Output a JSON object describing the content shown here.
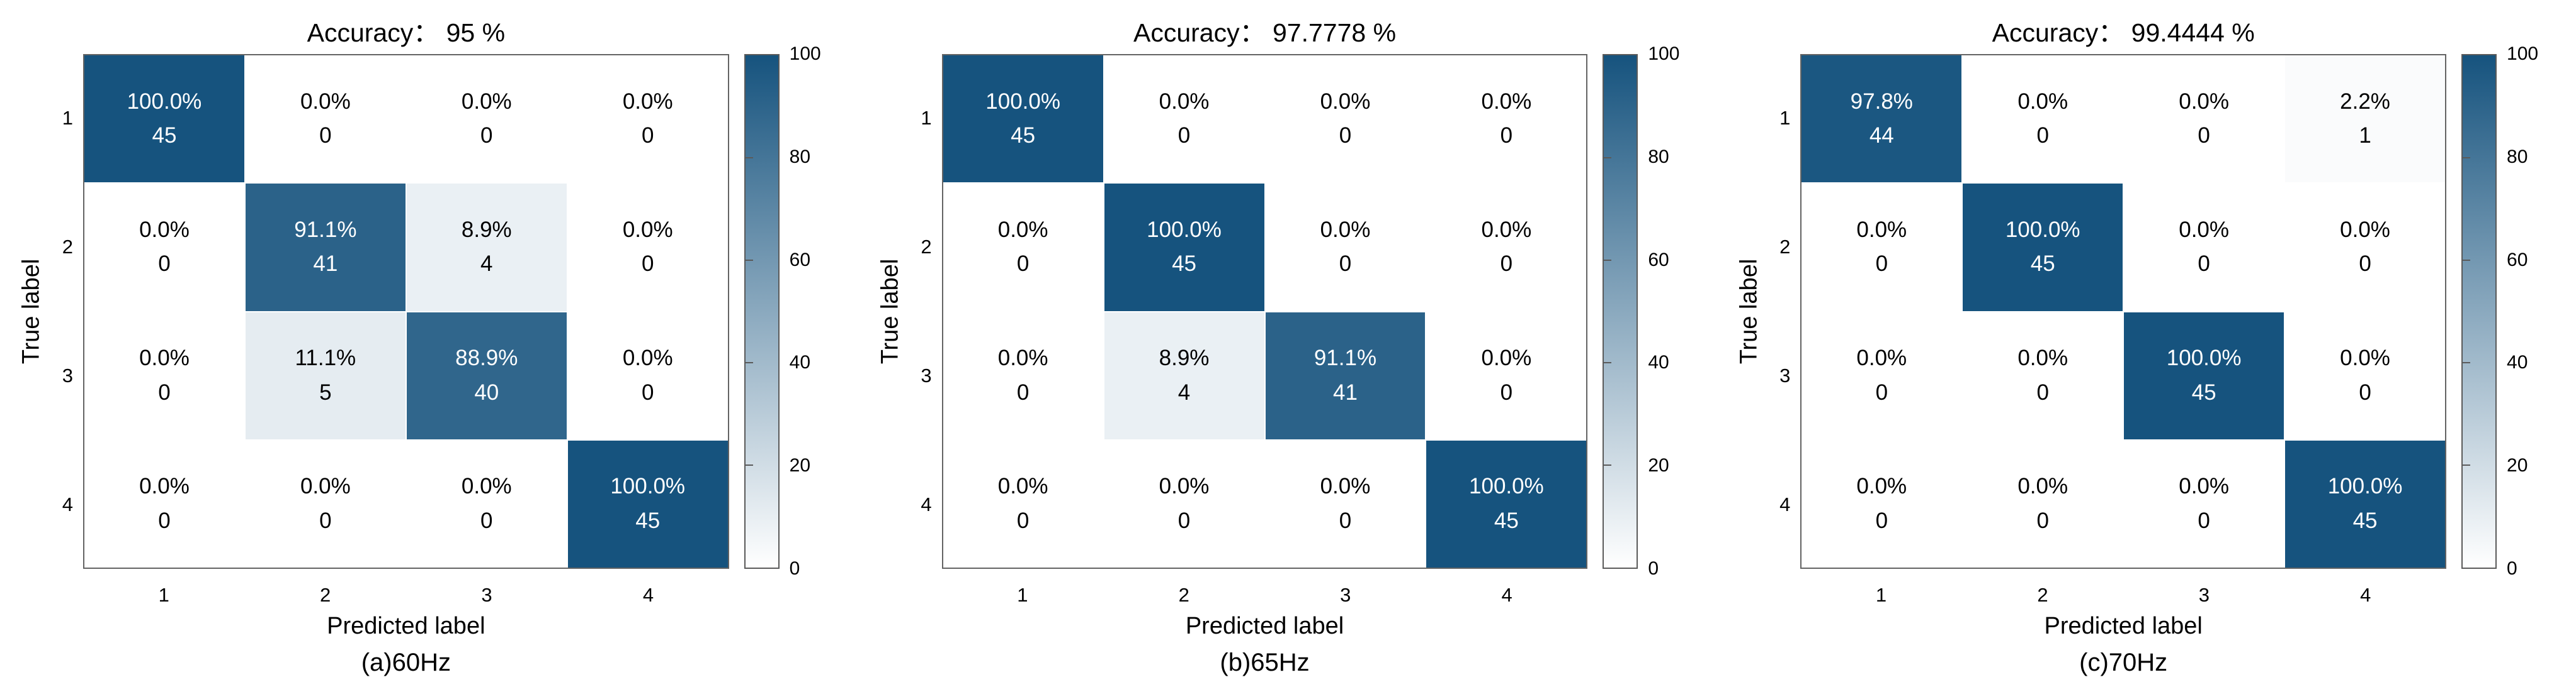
{
  "page": {
    "background": "#ffffff"
  },
  "style": {
    "colormap_low": "#ffffff",
    "colormap_high": "#16537e",
    "frame_color": "#636363",
    "text_color": "#000000",
    "cell_text_on_dark": "#ffffff"
  },
  "colorbar": {
    "min": 0,
    "max": 100,
    "tick_values": [
      100,
      80,
      60,
      40,
      20,
      0
    ],
    "tick_labels": [
      "100",
      "80",
      "60",
      "40",
      "20",
      "0"
    ]
  },
  "chart_data": [
    {
      "type": "heatmap",
      "title": "Accuracy： 95 %",
      "caption": "(a)60Hz",
      "xlabel": "Predicted label",
      "ylabel": "True label",
      "x_ticks": [
        "1",
        "2",
        "3",
        "4"
      ],
      "y_ticks": [
        "1",
        "2",
        "3",
        "4"
      ],
      "zlim": [
        0,
        100
      ],
      "accuracy_percent": 95,
      "cells": [
        [
          {
            "pct": "100.0%",
            "n": "45",
            "v": 100
          },
          {
            "pct": "0.0%",
            "n": "0",
            "v": 0
          },
          {
            "pct": "0.0%",
            "n": "0",
            "v": 0
          },
          {
            "pct": "0.0%",
            "n": "0",
            "v": 0
          }
        ],
        [
          {
            "pct": "0.0%",
            "n": "0",
            "v": 0
          },
          {
            "pct": "91.1%",
            "n": "41",
            "v": 91.1
          },
          {
            "pct": "8.9%",
            "n": "4",
            "v": 8.9
          },
          {
            "pct": "0.0%",
            "n": "0",
            "v": 0
          }
        ],
        [
          {
            "pct": "0.0%",
            "n": "0",
            "v": 0
          },
          {
            "pct": "11.1%",
            "n": "5",
            "v": 11.1
          },
          {
            "pct": "88.9%",
            "n": "40",
            "v": 88.9
          },
          {
            "pct": "0.0%",
            "n": "0",
            "v": 0
          }
        ],
        [
          {
            "pct": "0.0%",
            "n": "0",
            "v": 0
          },
          {
            "pct": "0.0%",
            "n": "0",
            "v": 0
          },
          {
            "pct": "0.0%",
            "n": "0",
            "v": 0
          },
          {
            "pct": "100.0%",
            "n": "45",
            "v": 100
          }
        ]
      ]
    },
    {
      "type": "heatmap",
      "title": "Accuracy： 97.7778 %",
      "caption": "(b)65Hz",
      "xlabel": "Predicted label",
      "ylabel": "True label",
      "x_ticks": [
        "1",
        "2",
        "3",
        "4"
      ],
      "y_ticks": [
        "1",
        "2",
        "3",
        "4"
      ],
      "zlim": [
        0,
        100
      ],
      "accuracy_percent": 97.7778,
      "cells": [
        [
          {
            "pct": "100.0%",
            "n": "45",
            "v": 100
          },
          {
            "pct": "0.0%",
            "n": "0",
            "v": 0
          },
          {
            "pct": "0.0%",
            "n": "0",
            "v": 0
          },
          {
            "pct": "0.0%",
            "n": "0",
            "v": 0
          }
        ],
        [
          {
            "pct": "0.0%",
            "n": "0",
            "v": 0
          },
          {
            "pct": "100.0%",
            "n": "45",
            "v": 100
          },
          {
            "pct": "0.0%",
            "n": "0",
            "v": 0
          },
          {
            "pct": "0.0%",
            "n": "0",
            "v": 0
          }
        ],
        [
          {
            "pct": "0.0%",
            "n": "0",
            "v": 0
          },
          {
            "pct": "8.9%",
            "n": "4",
            "v": 8.9
          },
          {
            "pct": "91.1%",
            "n": "41",
            "v": 91.1
          },
          {
            "pct": "0.0%",
            "n": "0",
            "v": 0
          }
        ],
        [
          {
            "pct": "0.0%",
            "n": "0",
            "v": 0
          },
          {
            "pct": "0.0%",
            "n": "0",
            "v": 0
          },
          {
            "pct": "0.0%",
            "n": "0",
            "v": 0
          },
          {
            "pct": "100.0%",
            "n": "45",
            "v": 100
          }
        ]
      ]
    },
    {
      "type": "heatmap",
      "title": "Accuracy： 99.4444 %",
      "caption": "(c)70Hz",
      "xlabel": "Predicted label",
      "ylabel": "True label",
      "x_ticks": [
        "1",
        "2",
        "3",
        "4"
      ],
      "y_ticks": [
        "1",
        "2",
        "3",
        "4"
      ],
      "zlim": [
        0,
        100
      ],
      "accuracy_percent": 99.4444,
      "cells": [
        [
          {
            "pct": "97.8%",
            "n": "44",
            "v": 97.8
          },
          {
            "pct": "0.0%",
            "n": "0",
            "v": 0
          },
          {
            "pct": "0.0%",
            "n": "0",
            "v": 0
          },
          {
            "pct": "2.2%",
            "n": "1",
            "v": 2.2
          }
        ],
        [
          {
            "pct": "0.0%",
            "n": "0",
            "v": 0
          },
          {
            "pct": "100.0%",
            "n": "45",
            "v": 100
          },
          {
            "pct": "0.0%",
            "n": "0",
            "v": 0
          },
          {
            "pct": "0.0%",
            "n": "0",
            "v": 0
          }
        ],
        [
          {
            "pct": "0.0%",
            "n": "0",
            "v": 0
          },
          {
            "pct": "0.0%",
            "n": "0",
            "v": 0
          },
          {
            "pct": "100.0%",
            "n": "45",
            "v": 100
          },
          {
            "pct": "0.0%",
            "n": "0",
            "v": 0
          }
        ],
        [
          {
            "pct": "0.0%",
            "n": "0",
            "v": 0
          },
          {
            "pct": "0.0%",
            "n": "0",
            "v": 0
          },
          {
            "pct": "0.0%",
            "n": "0",
            "v": 0
          },
          {
            "pct": "100.0%",
            "n": "45",
            "v": 100
          }
        ]
      ]
    }
  ]
}
